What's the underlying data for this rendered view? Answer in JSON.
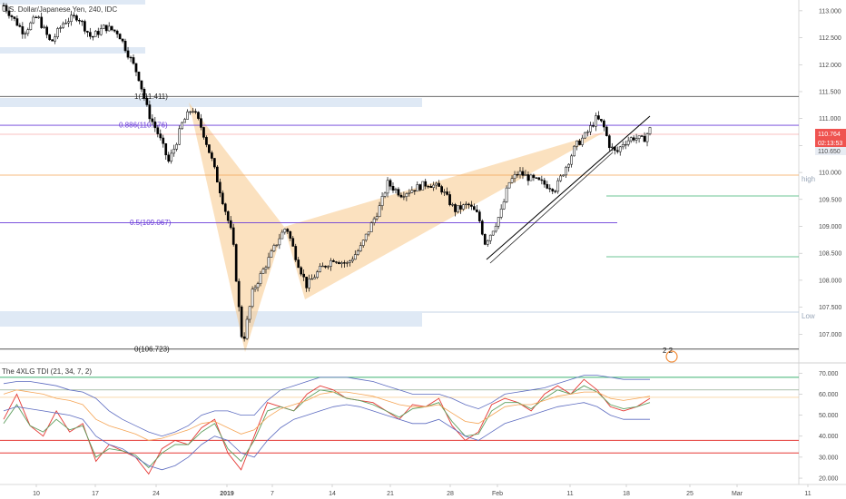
{
  "symbol_title": "U.S. Dollar/Japanese Yen, 240, IDC",
  "indicator_title": "The 4XLG TDI (21, 34, 7, 2)",
  "badges": {
    "price": "110.764",
    "countdown": "02:13:53",
    "overlap_price": "110.650",
    "signal_number": "2 2"
  },
  "right_tags": {
    "high_tag": "high",
    "low_tag": "Low"
  },
  "colors": {
    "up_candle": "#ffffff",
    "down_candle": "#000000",
    "harmonic_fill": "#f7c98a",
    "fib_violet": "#6a3bd8",
    "fib_grey": "#555555",
    "price_line": "#ef5350",
    "support_zone": "#dfe9f5",
    "tdi_green": "#3cb371",
    "tdi_red": "#e53935",
    "band_blue": "#5c6bc0",
    "mid_orange": "#f5a454",
    "rsi_line": "#5f9f5f"
  },
  "chart_data": [
    {
      "type": "candlestick",
      "title": "U.S. Dollar/Japanese Yen, 240, IDC",
      "ylim": [
        106.5,
        113.2
      ],
      "y_ticks": [
        "113.000",
        "112.500",
        "112.000",
        "111.500",
        "111.000",
        "110.500",
        "110.000",
        "109.500",
        "109.000",
        "108.500",
        "108.000",
        "107.500",
        "107.000"
      ],
      "x_ticks": [
        "10",
        "17",
        "24",
        "2019",
        "7",
        "14",
        "21",
        "28",
        "Feb",
        "11",
        "18",
        "25",
        "Mar",
        "11"
      ],
      "fib_levels": [
        {
          "label": "1(111.411)",
          "value": 111.411
        },
        {
          "label": "0.886(110.876)",
          "value": 110.876
        },
        {
          "label": "0.5(109.067)",
          "value": 109.067
        },
        {
          "label": "0(106.723)",
          "value": 106.723
        }
      ],
      "current_price": 110.764,
      "candle_path": [
        {
          "t": 0,
          "p": 113.1
        },
        {
          "t": 3,
          "p": 112.6
        },
        {
          "t": 5,
          "p": 112.9
        },
        {
          "t": 7,
          "p": 112.4
        },
        {
          "t": 9,
          "p": 112.8
        },
        {
          "t": 11,
          "p": 112.9
        },
        {
          "t": 13,
          "p": 112.5
        },
        {
          "t": 15,
          "p": 112.7
        },
        {
          "t": 17,
          "p": 112.6
        },
        {
          "t": 18.5,
          "p": 112.2
        },
        {
          "t": 20,
          "p": 111.8
        },
        {
          "t": 21.5,
          "p": 111.1
        },
        {
          "t": 23,
          "p": 110.7
        },
        {
          "t": 24.5,
          "p": 110.2
        },
        {
          "t": 25.5,
          "p": 110.5
        },
        {
          "t": 26.5,
          "p": 110.9
        },
        {
          "t": 28,
          "p": 111.2
        },
        {
          "t": 29.5,
          "p": 110.8
        },
        {
          "t": 31,
          "p": 110.2
        },
        {
          "t": 32.5,
          "p": 109.5
        },
        {
          "t": 34,
          "p": 108.8
        },
        {
          "t": 35,
          "p": 107.4
        },
        {
          "t": 35.5,
          "p": 106.8
        },
        {
          "t": 37,
          "p": 107.8
        },
        {
          "t": 39,
          "p": 108.3
        },
        {
          "t": 41,
          "p": 108.8
        },
        {
          "t": 42,
          "p": 109.0
        },
        {
          "t": 43.5,
          "p": 108.4
        },
        {
          "t": 45,
          "p": 107.9
        },
        {
          "t": 47,
          "p": 108.2
        },
        {
          "t": 49,
          "p": 108.4
        },
        {
          "t": 51,
          "p": 108.3
        },
        {
          "t": 53,
          "p": 108.6
        },
        {
          "t": 54.5,
          "p": 109.0
        },
        {
          "t": 56,
          "p": 109.4
        },
        {
          "t": 57,
          "p": 109.8
        },
        {
          "t": 59,
          "p": 109.6
        },
        {
          "t": 61,
          "p": 109.7
        },
        {
          "t": 63,
          "p": 109.8
        },
        {
          "t": 65,
          "p": 109.7
        },
        {
          "t": 67,
          "p": 109.3
        },
        {
          "t": 69,
          "p": 109.4
        },
        {
          "t": 70.5,
          "p": 109.2
        },
        {
          "t": 71.5,
          "p": 108.7
        },
        {
          "t": 72.5,
          "p": 108.9
        },
        {
          "t": 74,
          "p": 109.3
        },
        {
          "t": 75,
          "p": 109.8
        },
        {
          "t": 76.5,
          "p": 110.0
        },
        {
          "t": 78,
          "p": 109.9
        },
        {
          "t": 80,
          "p": 109.8
        },
        {
          "t": 82,
          "p": 109.7
        },
        {
          "t": 83.5,
          "p": 110.1
        },
        {
          "t": 85,
          "p": 110.5
        },
        {
          "t": 86.5,
          "p": 110.7
        },
        {
          "t": 88,
          "p": 111.0
        },
        {
          "t": 89,
          "p": 110.9
        },
        {
          "t": 90,
          "p": 110.5
        },
        {
          "t": 91,
          "p": 110.35
        },
        {
          "t": 92,
          "p": 110.55
        },
        {
          "t": 93.5,
          "p": 110.65
        },
        {
          "t": 95,
          "p": 110.6
        },
        {
          "t": 96,
          "p": 110.8
        }
      ]
    },
    {
      "type": "line",
      "title": "The 4XLG TDI (21, 34, 7, 2)",
      "ylim": [
        17,
        74
      ],
      "y_ticks": [
        "70.000",
        "60.000",
        "50.000",
        "40.000",
        "30.000",
        "20.000"
      ],
      "levels": [
        68,
        62,
        58.5,
        38,
        32
      ],
      "series": [
        {
          "values": [
            48,
            60,
            45,
            40,
            52,
            42,
            46,
            28,
            36,
            33,
            30,
            22,
            34,
            38,
            36,
            44,
            48,
            32,
            24,
            40,
            56,
            54,
            52,
            60,
            64,
            62,
            58,
            57,
            56,
            52,
            48,
            55,
            54,
            58,
            45,
            38,
            42,
            55,
            58,
            56,
            52,
            60,
            64,
            60,
            67,
            62,
            54,
            52,
            54,
            58
          ]
        },
        {
          "values": [
            46,
            55,
            45,
            42,
            48,
            43,
            45,
            30,
            34,
            33,
            31,
            25,
            32,
            36,
            36,
            42,
            46,
            34,
            28,
            38,
            52,
            54,
            52,
            58,
            62,
            61,
            58,
            57,
            55,
            52,
            49,
            53,
            54,
            56,
            47,
            40,
            41,
            52,
            56,
            56,
            53,
            58,
            62,
            60,
            64,
            61,
            55,
            53,
            54,
            56
          ]
        },
        {
          "values": [
            60,
            62,
            61,
            60,
            58,
            57,
            55,
            48,
            45,
            43,
            41,
            38,
            39,
            41,
            43,
            46,
            47,
            44,
            41,
            43,
            49,
            53,
            55,
            57,
            60,
            61,
            61,
            60,
            59,
            57,
            55,
            54,
            54,
            55,
            51,
            47,
            46,
            50,
            54,
            55,
            55,
            57,
            59,
            60,
            61,
            61,
            58,
            57,
            58,
            59
          ]
        },
        {
          "values": [
            65,
            66,
            66,
            65,
            64,
            62,
            61,
            58,
            52,
            48,
            45,
            42,
            40,
            42,
            45,
            50,
            52,
            52,
            50,
            50,
            57,
            62,
            64,
            66,
            68,
            68,
            68,
            67,
            66,
            64,
            62,
            60,
            60,
            60,
            58,
            55,
            53,
            56,
            60,
            61,
            62,
            63,
            65,
            67,
            69,
            69,
            68,
            67,
            67,
            67
          ]
        },
        {
          "values": [
            52,
            54,
            53,
            52,
            51,
            50,
            48,
            40,
            36,
            34,
            30,
            26,
            24,
            26,
            30,
            36,
            40,
            38,
            32,
            30,
            38,
            44,
            48,
            50,
            52,
            54,
            55,
            54,
            52,
            50,
            48,
            46,
            46,
            48,
            44,
            40,
            38,
            42,
            46,
            48,
            50,
            52,
            54,
            55,
            56,
            54,
            50,
            48,
            48,
            48
          ]
        }
      ]
    }
  ]
}
